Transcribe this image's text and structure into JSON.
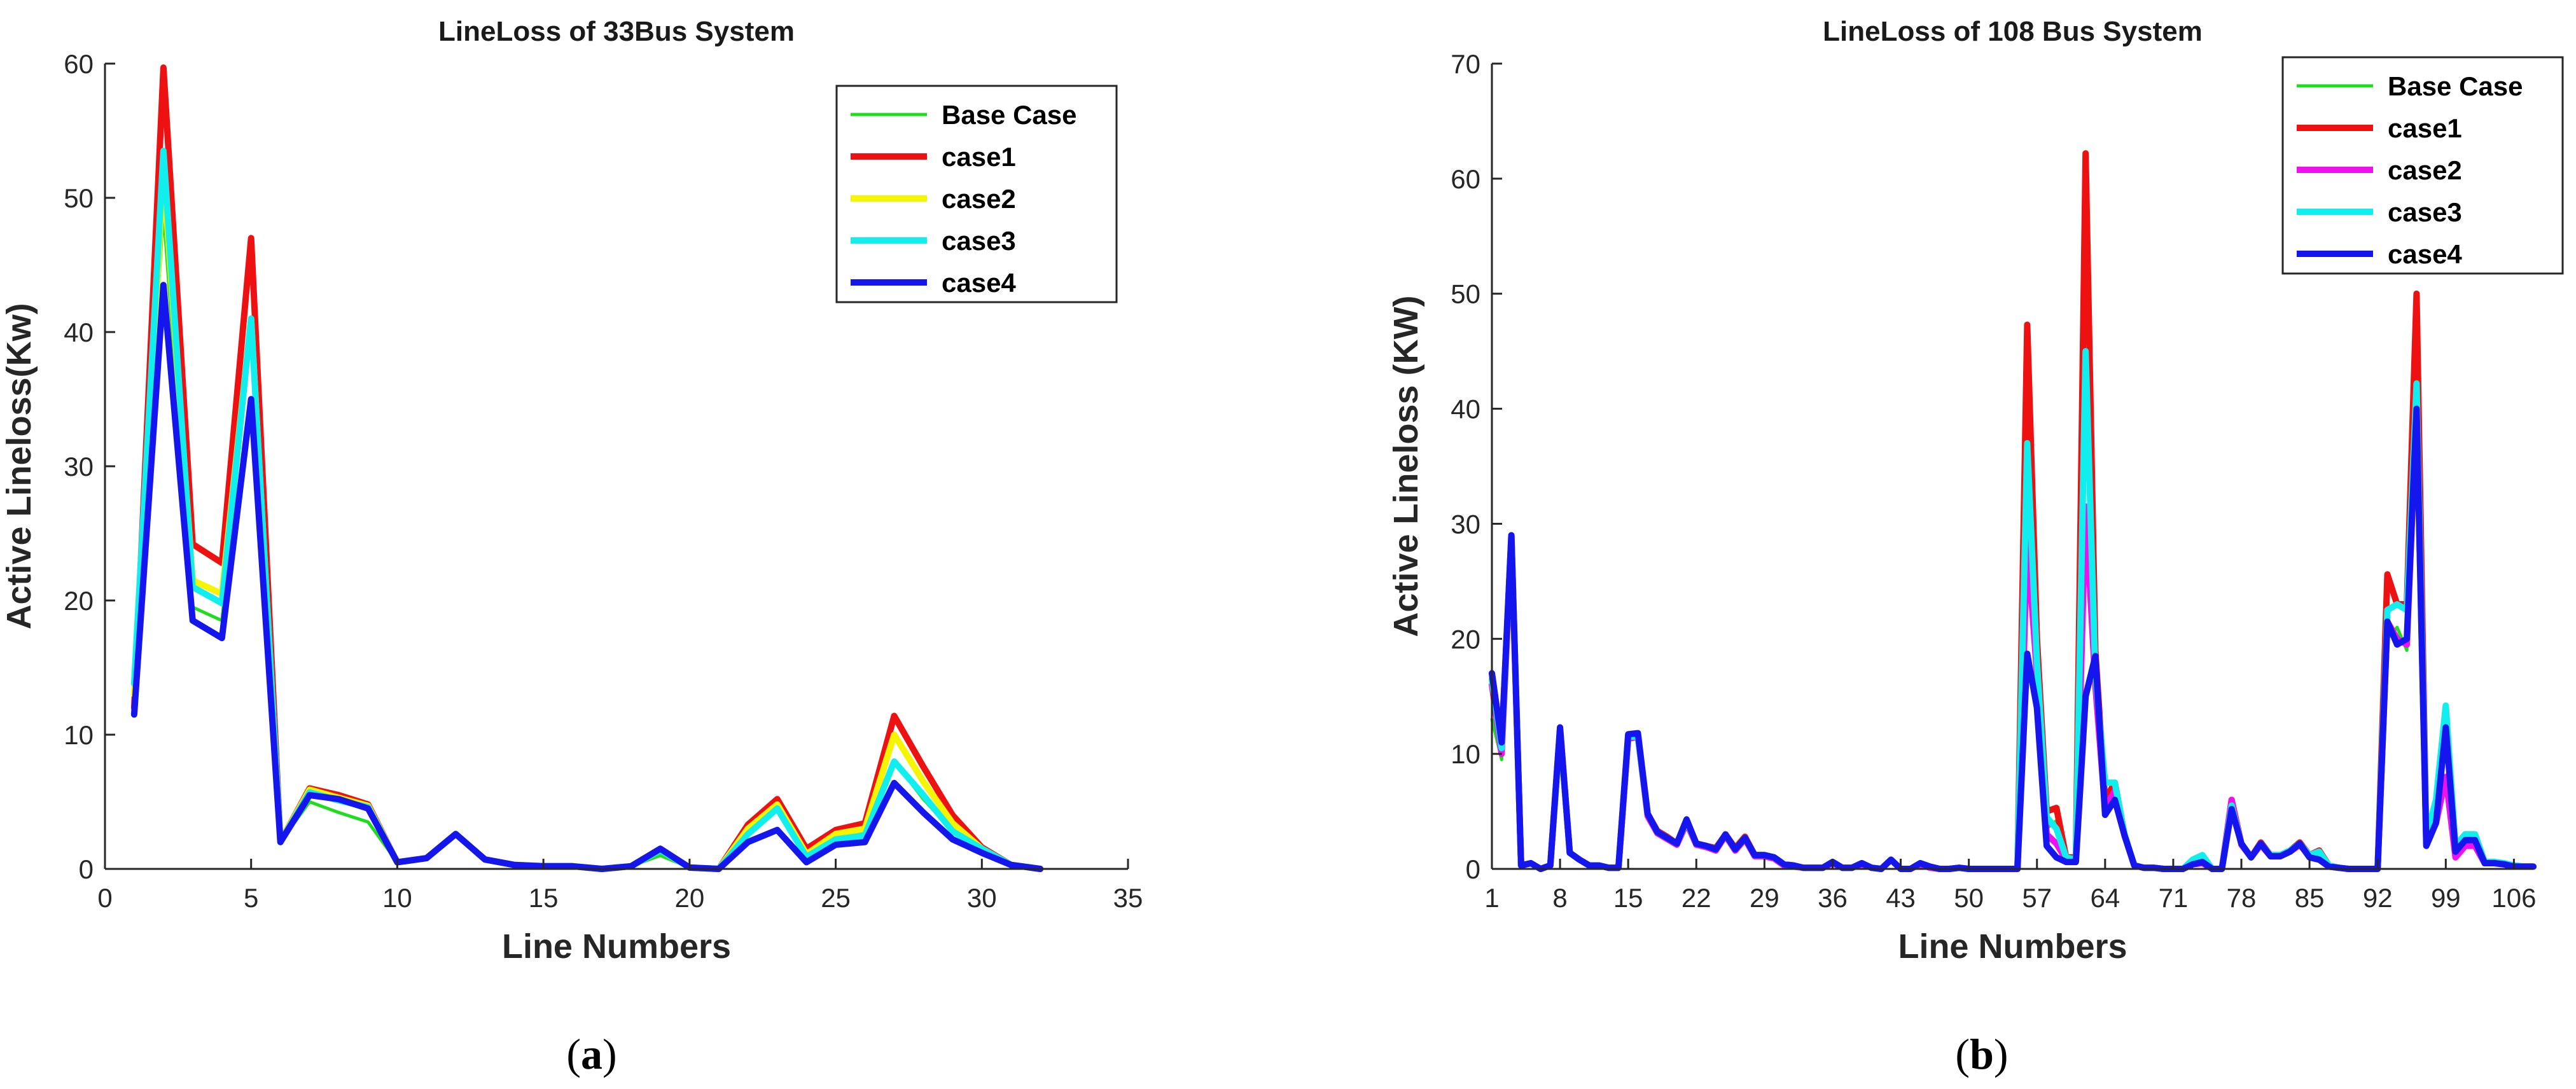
{
  "chart_data": [
    {
      "type": "line",
      "title": "LineLoss of 33Bus System",
      "xlabel": "Line Numbers",
      "ylabel": "Active Lineloss(Kw)",
      "caption": "a",
      "xlim": [
        0,
        35
      ],
      "ylim": [
        0,
        60
      ],
      "xticks": [
        0,
        5,
        10,
        15,
        20,
        25,
        30,
        35
      ],
      "yticks": [
        0,
        10,
        20,
        30,
        40,
        50,
        60
      ],
      "legend_position": "top-right",
      "x": [
        1,
        2,
        3,
        4,
        5,
        6,
        7,
        8,
        9,
        10,
        11,
        12,
        13,
        14,
        15,
        16,
        17,
        18,
        19,
        20,
        21,
        22,
        23,
        24,
        25,
        26,
        27,
        28,
        29,
        30,
        31,
        32
      ],
      "series": [
        {
          "name": "Base Case",
          "color": "#1fdc1f",
          "width": "thin",
          "values": [
            15.0,
            49.0,
            19.5,
            18.5,
            40.0,
            2.0,
            5.0,
            4.2,
            3.5,
            0.5,
            0.8,
            2.6,
            0.7,
            0.3,
            0.2,
            0.2,
            0.0,
            0.2,
            1.0,
            0.1,
            0.0,
            3.0,
            4.8,
            0.8,
            2.5,
            2.8,
            8.0,
            5.2,
            2.8,
            1.5,
            0.3,
            0.0
          ]
        },
        {
          "name": "case1",
          "color": "#ee1111",
          "width": "thick",
          "values": [
            12.0,
            59.7,
            24.2,
            22.8,
            47.0,
            2.0,
            6.0,
            5.5,
            4.8,
            0.5,
            0.8,
            2.6,
            0.7,
            0.3,
            0.2,
            0.2,
            0.0,
            0.2,
            1.5,
            0.1,
            0.0,
            3.3,
            5.2,
            1.5,
            2.9,
            3.4,
            11.4,
            7.6,
            4.0,
            1.6,
            0.3,
            0.0
          ]
        },
        {
          "name": "case2",
          "color": "#f5f500",
          "width": "thick",
          "values": [
            13.0,
            52.0,
            21.5,
            20.5,
            41.0,
            2.0,
            5.9,
            5.3,
            4.7,
            0.5,
            0.8,
            2.6,
            0.7,
            0.3,
            0.2,
            0.2,
            0.0,
            0.2,
            1.4,
            0.1,
            0.0,
            3.0,
            4.8,
            1.1,
            2.6,
            3.0,
            10.0,
            6.5,
            3.4,
            1.5,
            0.3,
            0.0
          ]
        },
        {
          "name": "case3",
          "color": "#11eeee",
          "width": "thick",
          "values": [
            13.8,
            53.5,
            21.0,
            19.8,
            41.0,
            2.0,
            5.7,
            5.1,
            4.6,
            0.5,
            0.8,
            2.6,
            0.7,
            0.3,
            0.2,
            0.2,
            0.0,
            0.2,
            1.4,
            0.1,
            0.0,
            2.6,
            4.5,
            0.9,
            2.2,
            2.5,
            8.0,
            5.5,
            2.8,
            1.5,
            0.3,
            0.0
          ]
        },
        {
          "name": "case4",
          "color": "#1515ee",
          "width": "thick",
          "values": [
            11.5,
            43.5,
            18.5,
            17.2,
            35.0,
            2.0,
            5.5,
            5.2,
            4.5,
            0.5,
            0.8,
            2.6,
            0.7,
            0.3,
            0.2,
            0.2,
            0.0,
            0.2,
            1.5,
            0.1,
            0.0,
            2.0,
            2.9,
            0.5,
            1.8,
            2.0,
            6.4,
            4.2,
            2.2,
            1.2,
            0.3,
            0.0
          ]
        }
      ]
    },
    {
      "type": "line",
      "title": "LineLoss of 108 Bus System",
      "xlabel": "Line Numbers",
      "ylabel": "Active Lineloss (KW)",
      "caption": "b",
      "xlim": [
        1,
        108
      ],
      "ylim": [
        0,
        70
      ],
      "xticks": [
        1,
        8,
        15,
        22,
        29,
        36,
        43,
        50,
        57,
        64,
        71,
        78,
        85,
        92,
        99,
        106
      ],
      "yticks": [
        0,
        10,
        20,
        30,
        40,
        50,
        60,
        70
      ],
      "legend_position": "top-right",
      "x": [
        1,
        2,
        3,
        4,
        5,
        6,
        7,
        8,
        9,
        10,
        11,
        12,
        13,
        14,
        15,
        16,
        17,
        18,
        19,
        20,
        21,
        22,
        23,
        24,
        25,
        26,
        27,
        28,
        29,
        30,
        31,
        32,
        33,
        34,
        35,
        36,
        37,
        38,
        39,
        40,
        41,
        42,
        43,
        44,
        45,
        46,
        47,
        48,
        49,
        50,
        51,
        52,
        53,
        54,
        55,
        56,
        57,
        58,
        59,
        60,
        61,
        62,
        63,
        64,
        65,
        66,
        67,
        68,
        69,
        70,
        71,
        72,
        73,
        74,
        75,
        76,
        77,
        78,
        79,
        80,
        81,
        82,
        83,
        84,
        85,
        86,
        87,
        88,
        89,
        90,
        91,
        92,
        93,
        94,
        95,
        96,
        97,
        98,
        99,
        100,
        101,
        102,
        103,
        104,
        105,
        106,
        107,
        108
      ],
      "series": [
        {
          "name": "Base Case",
          "color": "#1fdc1f",
          "width": "thin",
          "values": [
            13,
            9.5,
            28,
            0.3,
            0.5,
            0,
            0.3,
            11.5,
            1.4,
            0.8,
            0.3,
            0.3,
            0.1,
            0.1,
            11.2,
            11.5,
            4.5,
            3.0,
            2.5,
            2.0,
            4.0,
            2.0,
            1.8,
            1.5,
            2.8,
            1.5,
            2.5,
            1.0,
            1.0,
            0.8,
            0.3,
            0.2,
            0.1,
            0.1,
            0.1,
            0.5,
            0.1,
            0.1,
            0.4,
            0.1,
            0,
            0.8,
            0,
            0,
            0.4,
            0.1,
            0,
            0,
            0.1,
            0,
            0,
            0,
            0,
            0,
            0,
            18,
            15,
            3.5,
            4.2,
            0.6,
            0.5,
            30,
            15,
            5.5,
            6.5,
            2.8,
            0.3,
            0.1,
            0.1,
            0,
            0,
            0,
            0.3,
            0.4,
            0,
            0,
            5,
            2,
            1,
            2,
            1,
            1,
            1.5,
            2,
            1,
            1.5,
            0.2,
            0.1,
            0,
            0,
            0,
            0,
            20,
            21,
            19,
            38,
            2.5,
            5,
            11,
            1.5,
            2.5,
            2.5,
            0.5,
            0.5,
            0.4,
            0.2,
            0.2,
            0.2
          ]
        },
        {
          "name": "case1",
          "color": "#ee1111",
          "width": "thick",
          "values": [
            17,
            11,
            29,
            0.3,
            0.5,
            0,
            0.3,
            12.2,
            1.4,
            0.8,
            0.3,
            0.3,
            0.1,
            0.1,
            11.5,
            11.5,
            4.8,
            3.3,
            2.8,
            2.2,
            4.2,
            2.2,
            2.0,
            1.8,
            3.0,
            1.8,
            2.8,
            1.2,
            1.2,
            1.0,
            0.4,
            0.3,
            0.1,
            0.1,
            0.1,
            0.6,
            0.1,
            0.1,
            0.5,
            0.1,
            0,
            0.8,
            0,
            0,
            0.5,
            0.2,
            0,
            0,
            0.1,
            0,
            0,
            0,
            0,
            0,
            0,
            47.3,
            20,
            5,
            5.3,
            1,
            1,
            62.2,
            19,
            6,
            7.5,
            3.0,
            0.3,
            0.1,
            0.1,
            0,
            0,
            0,
            0.5,
            0.8,
            0,
            0,
            6,
            2.2,
            1,
            2.3,
            1.2,
            1.2,
            1.6,
            2.3,
            1.2,
            1.6,
            0.3,
            0.1,
            0,
            0,
            0,
            0,
            25.6,
            23,
            23,
            50,
            2.5,
            5,
            13.5,
            2,
            3,
            3,
            0.6,
            0.6,
            0.4,
            0.3,
            0.2,
            0.2
          ]
        },
        {
          "name": "case2",
          "color": "#ee11ee",
          "width": "thick",
          "values": [
            16,
            10,
            28.5,
            0.3,
            0.5,
            0,
            0.3,
            12,
            1.4,
            0.8,
            0.3,
            0.3,
            0.1,
            0.1,
            11.3,
            11.5,
            4.6,
            3.1,
            2.6,
            2.1,
            4.0,
            2.1,
            1.9,
            1.6,
            2.9,
            1.6,
            2.6,
            1.1,
            1.1,
            0.9,
            0.3,
            0.2,
            0.1,
            0.1,
            0.1,
            0.5,
            0.1,
            0.1,
            0.4,
            0.1,
            0,
            0.8,
            0,
            0,
            0.4,
            0.1,
            0,
            0,
            0.1,
            0,
            0,
            0,
            0,
            0,
            0,
            28.5,
            17,
            3,
            2.2,
            0.8,
            0.7,
            31.5,
            16,
            5.2,
            6.8,
            2.9,
            0.3,
            0.1,
            0.1,
            0,
            0,
            0,
            0.4,
            0.5,
            0,
            0,
            6,
            2.1,
            1,
            2.1,
            1.1,
            1.1,
            1.5,
            2.1,
            1.1,
            1.2,
            0.2,
            0.1,
            0,
            0,
            0,
            0,
            21.5,
            20,
            19.5,
            40,
            2.2,
            4,
            8,
            1,
            2,
            2,
            0.5,
            0.5,
            0.4,
            0.2,
            0.2,
            0.2
          ]
        },
        {
          "name": "case3",
          "color": "#11eeee",
          "width": "thick",
          "values": [
            16.5,
            10.5,
            29,
            0.3,
            0.5,
            0,
            0.3,
            12,
            1.4,
            0.8,
            0.3,
            0.3,
            0.1,
            0.1,
            11.5,
            11.5,
            4.8,
            3.2,
            2.7,
            2.2,
            4.2,
            2.2,
            2.0,
            1.7,
            3.0,
            1.7,
            2.7,
            1.2,
            1.2,
            1.0,
            0.4,
            0.3,
            0.1,
            0.1,
            0.1,
            0.6,
            0.1,
            0.1,
            0.5,
            0.1,
            0,
            0.8,
            0,
            0,
            0.5,
            0.2,
            0,
            0,
            0.1,
            0,
            0,
            0,
            0,
            0,
            0,
            37,
            18,
            4.5,
            3.5,
            1,
            0.8,
            45,
            17,
            7.5,
            7.5,
            3.0,
            0.3,
            0.1,
            0.1,
            0,
            0,
            0,
            0.8,
            1.2,
            0,
            0,
            5.5,
            2.2,
            1,
            2.2,
            1.2,
            1.2,
            1.6,
            2.2,
            1.2,
            1.5,
            0.3,
            0.1,
            0,
            0,
            0,
            0,
            22.5,
            23,
            22.5,
            42.2,
            2.8,
            6,
            14.2,
            2,
            3,
            3,
            0.6,
            0.6,
            0.5,
            0.3,
            0.2,
            0.2
          ]
        },
        {
          "name": "case4",
          "color": "#1515ee",
          "width": "thick",
          "values": [
            17,
            11,
            29,
            0.3,
            0.5,
            0,
            0.3,
            12.3,
            1.4,
            0.8,
            0.3,
            0.3,
            0.1,
            0.1,
            11.7,
            11.8,
            4.8,
            3.2,
            2.7,
            2.2,
            4.3,
            2.2,
            2.0,
            1.7,
            3.0,
            1.7,
            2.7,
            1.2,
            1.2,
            1.0,
            0.4,
            0.3,
            0.1,
            0.1,
            0.1,
            0.6,
            0.1,
            0.1,
            0.5,
            0.1,
            0,
            0.8,
            0,
            0,
            0.5,
            0.2,
            0,
            0,
            0.1,
            0,
            0,
            0,
            0,
            0,
            0,
            18.7,
            14,
            2,
            1,
            0.6,
            0.6,
            15,
            18.5,
            4.7,
            6,
            2.9,
            0.3,
            0.1,
            0.1,
            0,
            0,
            0,
            0.4,
            0.6,
            0,
            0,
            5.2,
            2.2,
            1,
            2.2,
            1.1,
            1.1,
            1.5,
            2.2,
            1.0,
            0.8,
            0.2,
            0.1,
            0,
            0,
            0,
            0,
            21.5,
            19.5,
            20,
            40,
            2,
            4,
            12.3,
            1.5,
            2.5,
            2.5,
            0.5,
            0.5,
            0.4,
            0.2,
            0.2,
            0.2
          ]
        }
      ]
    }
  ]
}
